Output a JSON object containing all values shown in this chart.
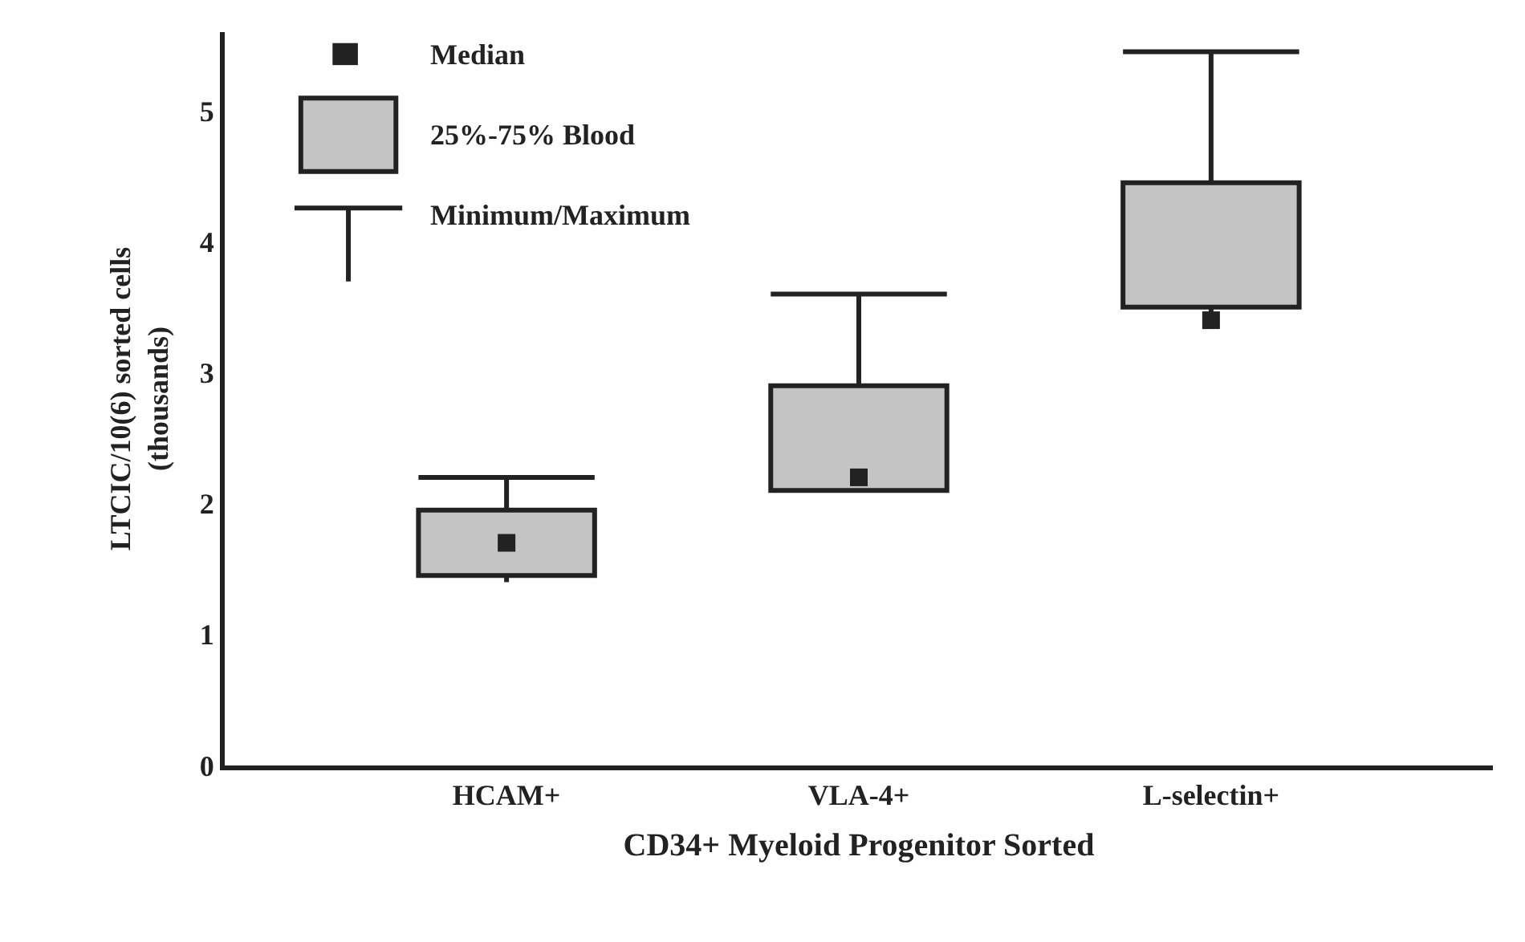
{
  "chart_data": {
    "type": "box",
    "xlabel": "CD34+ Myeloid Progenitor Sorted",
    "ylabel": "LTCIC/10(6) sorted cells\n(thousands)",
    "categories": [
      "HCAM+",
      "VLA-4+",
      "L-selectin+"
    ],
    "series": [
      {
        "color": "#c4c4c4",
        "boxes": [
          {
            "low": 1.4,
            "q1": 1.45,
            "median": 1.7,
            "q3": 1.95,
            "high": 2.2
          },
          {
            "low": 2.1,
            "q1": 2.1,
            "median": 2.2,
            "q3": 2.9,
            "high": 3.6
          },
          {
            "low": 3.4,
            "q1": 3.5,
            "median": 3.4,
            "q3": 4.45,
            "high": 5.45
          }
        ]
      }
    ],
    "ylim": [
      0,
      5.6
    ],
    "yticks": [
      0,
      1,
      2,
      3,
      4,
      5
    ],
    "annotations": [
      "Median",
      "25%-75% Blood",
      "Minimum/Maximum"
    ],
    "grid": false
  }
}
